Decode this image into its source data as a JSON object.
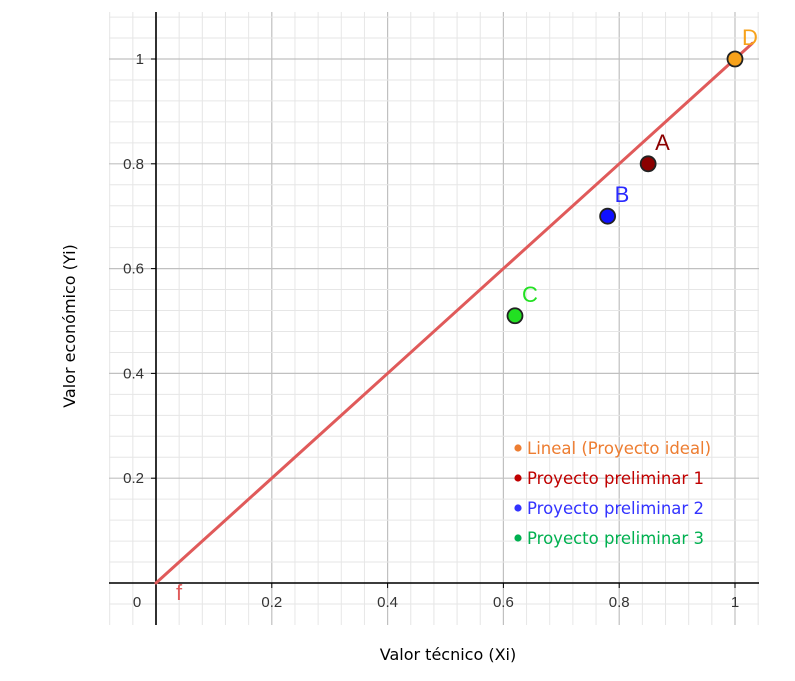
{
  "chart_data": {
    "type": "scatter",
    "xlabel": "Valor técnico (Xi)",
    "ylabel": "Valor económico (Yi)",
    "xlim": [
      -0.1,
      1.04
    ],
    "ylim": [
      -0.08,
      1.09
    ],
    "x_ticks": [
      {
        "value": 0.2,
        "label": "0.2"
      },
      {
        "value": 0.4,
        "label": "0.4"
      },
      {
        "value": 0.6,
        "label": "0.6"
      },
      {
        "value": 0.8,
        "label": "0.8"
      },
      {
        "value": 1,
        "label": "1"
      }
    ],
    "y_ticks": [
      {
        "value": 0.2,
        "label": "0.2"
      },
      {
        "value": 0.4,
        "label": "0.4"
      },
      {
        "value": 0.6,
        "label": "0.6"
      },
      {
        "value": 0.8,
        "label": "0.8"
      },
      {
        "value": 1,
        "label": "1"
      }
    ],
    "origin_label": "0",
    "grid": true,
    "line": {
      "name": "f",
      "x": [
        0,
        1.03
      ],
      "y": [
        0,
        1.03
      ],
      "color": "#e05a5a"
    },
    "points": [
      {
        "label": "D",
        "x": 1.0,
        "y": 1.0,
        "color": "#f7a21b",
        "label_color": "#f7a21b"
      },
      {
        "label": "A",
        "x": 0.85,
        "y": 0.8,
        "color": "#8b0000",
        "label_color": "#8b0000"
      },
      {
        "label": "B",
        "x": 0.78,
        "y": 0.7,
        "color": "#1010ff",
        "label_color": "#2a2aff"
      },
      {
        "label": "C",
        "x": 0.62,
        "y": 0.51,
        "color": "#22e022",
        "label_color": "#22e022"
      }
    ],
    "legend": {
      "position": "bottom-right",
      "entries": [
        {
          "label": "Lineal (Proyecto ideal)",
          "color": "#ed7d31"
        },
        {
          "label": "Proyecto preliminar 1",
          "color": "#c00000"
        },
        {
          "label": "Proyecto preliminar 2",
          "color": "#3333ff"
        },
        {
          "label": "Proyecto preliminar 3",
          "color": "#00b050"
        }
      ]
    }
  }
}
